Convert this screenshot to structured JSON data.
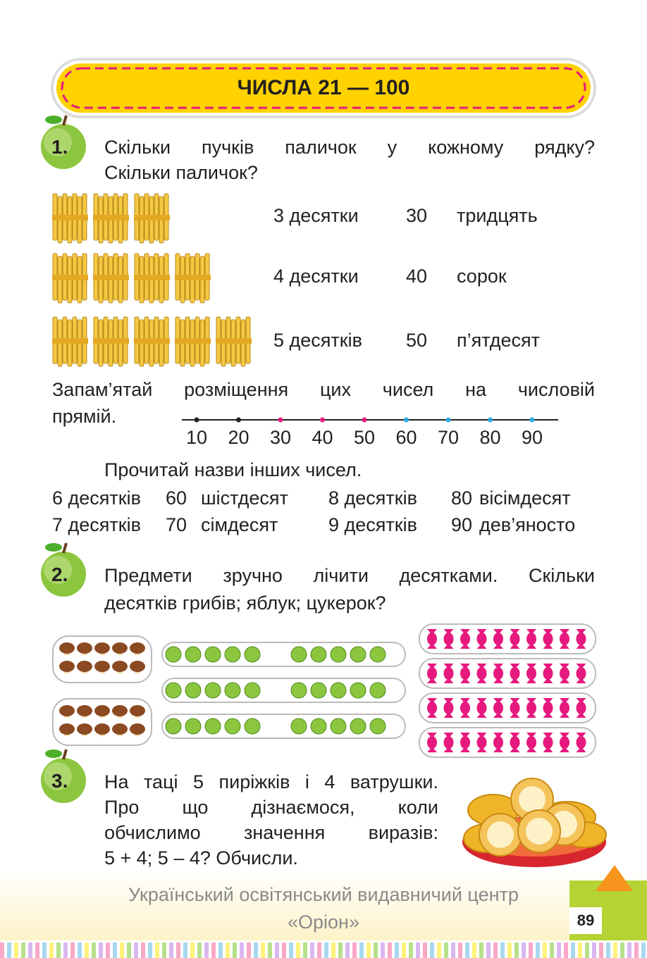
{
  "header": {
    "title": "ЧИСЛА 21 — 100"
  },
  "task1": {
    "number": "1.",
    "lines": [
      "Скільки пучків паличок у кожному рядку?",
      "Скільки паличок?"
    ],
    "rows": [
      {
        "tens": "3 десятки",
        "number": "30",
        "name": "тридцять"
      },
      {
        "tens": "4 десятки",
        "number": "40",
        "name": "сорок"
      },
      {
        "tens": "5 десятків",
        "number": "50",
        "name": "п’ятдесят"
      }
    ],
    "remember": [
      "Запам’ятай розміщення цих чисел на числовій",
      "прямій."
    ],
    "number_line": [
      "10",
      "20",
      "30",
      "40",
      "50",
      "60",
      "70",
      "80",
      "90"
    ],
    "read": "Прочитай назви інших чисел.",
    "names": [
      [
        "6 десятків",
        "60",
        "шістдесят",
        "8 десятків",
        "80",
        "вісімдесят"
      ],
      [
        "7 десятків",
        "70",
        "сімдесят",
        "9 десятків",
        "90",
        "дев’яносто"
      ]
    ]
  },
  "task2": {
    "number": "2.",
    "lines": [
      "Предмети зручно лічити десятками. Скільки",
      "десятків грибів; яблук; цукерок?"
    ]
  },
  "task3": {
    "number": "3.",
    "lines": [
      "На таці 5 пиріжків і 4 ватрушки.",
      "Про що дізнаємося, коли",
      "обчислимо значення виразів:",
      "5 + 4; 5 – 4? Обчисли."
    ]
  },
  "footer": {
    "publisher": "Український освітянський видавничий центр",
    "brand": "«Оріон»",
    "page": "89"
  }
}
